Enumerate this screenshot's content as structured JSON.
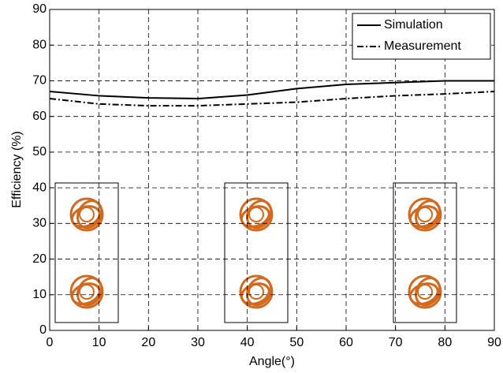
{
  "chart_data": {
    "type": "line",
    "x": [
      0,
      10,
      20,
      30,
      40,
      50,
      60,
      70,
      80,
      90
    ],
    "series": [
      {
        "name": "Simulation",
        "color": "#000000",
        "dash": "solid",
        "values": [
          67,
          65.8,
          65.2,
          65,
          66,
          67.8,
          69,
          69.5,
          70,
          70
        ]
      },
      {
        "name": "Measurement",
        "color": "#000000",
        "dash": "dashdot",
        "values": [
          65,
          63.5,
          63,
          63,
          63.5,
          64,
          65,
          65.8,
          66.3,
          67
        ]
      }
    ],
    "xlabel": "Angle(°)",
    "ylabel": "Efficiency (%)",
    "xlim": [
      0,
      90
    ],
    "xticks": [
      0,
      10,
      20,
      30,
      40,
      50,
      60,
      70,
      80,
      90
    ],
    "ylim": [
      0,
      90
    ],
    "yticks": [
      0,
      10,
      20,
      30,
      40,
      50,
      60,
      70,
      80,
      90
    ],
    "grid": true,
    "legend": "upper right"
  }
}
